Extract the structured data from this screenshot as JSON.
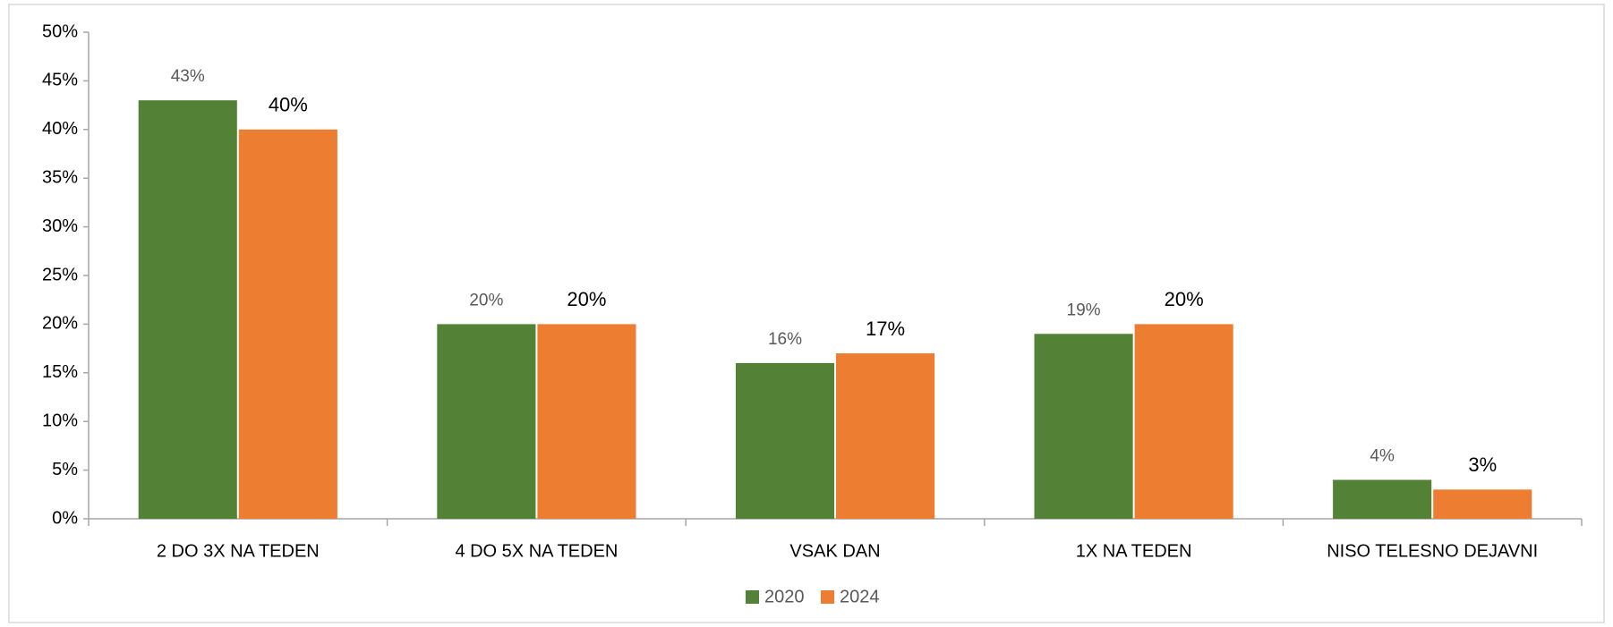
{
  "chart_data": {
    "type": "bar",
    "categories": [
      "2 DO 3X NA TEDEN",
      "4 DO 5X NA TEDEN",
      "VSAK DAN",
      "1X NA TEDEN",
      "NISO TELESNO DEJAVNI"
    ],
    "series": [
      {
        "name": "2020",
        "color": "#538135",
        "values": [
          43,
          20,
          16,
          19,
          4
        ],
        "value_labels": [
          "43%",
          "20%",
          "16%",
          "19%",
          "4%"
        ]
      },
      {
        "name": "2024",
        "color": "#ed7d31",
        "values": [
          40,
          20,
          17,
          20,
          3
        ],
        "value_labels": [
          "40%",
          "20%",
          "17%",
          "20%",
          "3%"
        ]
      }
    ],
    "ylim": [
      0,
      50
    ],
    "yticks": [
      {
        "value": 0,
        "label": "0%"
      },
      {
        "value": 5,
        "label": "5%"
      },
      {
        "value": 10,
        "label": "10%"
      },
      {
        "value": 15,
        "label": "15%"
      },
      {
        "value": 20,
        "label": "20%"
      },
      {
        "value": 25,
        "label": "25%"
      },
      {
        "value": 30,
        "label": "30%"
      },
      {
        "value": 35,
        "label": "35%"
      },
      {
        "value": 40,
        "label": "40%"
      },
      {
        "value": 45,
        "label": "45%"
      },
      {
        "value": 50,
        "label": "50%"
      }
    ],
    "grid": false,
    "legend": "bottom"
  }
}
